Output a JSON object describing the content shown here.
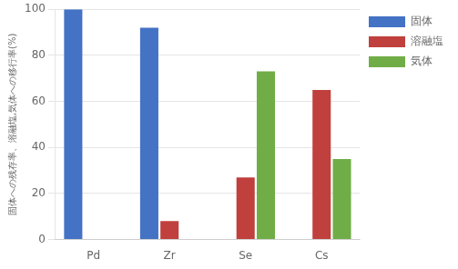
{
  "chart_data": {
    "type": "bar",
    "categories": [
      "Pd",
      "Zr",
      "Se",
      "Cs"
    ],
    "series": [
      {
        "name": "固体",
        "color": "#4472C4",
        "values": [
          100,
          92,
          0,
          0
        ]
      },
      {
        "name": "溶融塩",
        "color": "#C0403D",
        "values": [
          0,
          8,
          27,
          65
        ]
      },
      {
        "name": "気体",
        "color": "#70AD47",
        "values": [
          0,
          0,
          73,
          35
        ]
      }
    ],
    "ylabel": "固体への残存率、溶融塩,気体への移行率(%)",
    "ylim": [
      0,
      100
    ],
    "yticks": [
      0,
      20,
      40,
      60,
      80,
      100
    ],
    "grid": true,
    "legend": "right"
  }
}
